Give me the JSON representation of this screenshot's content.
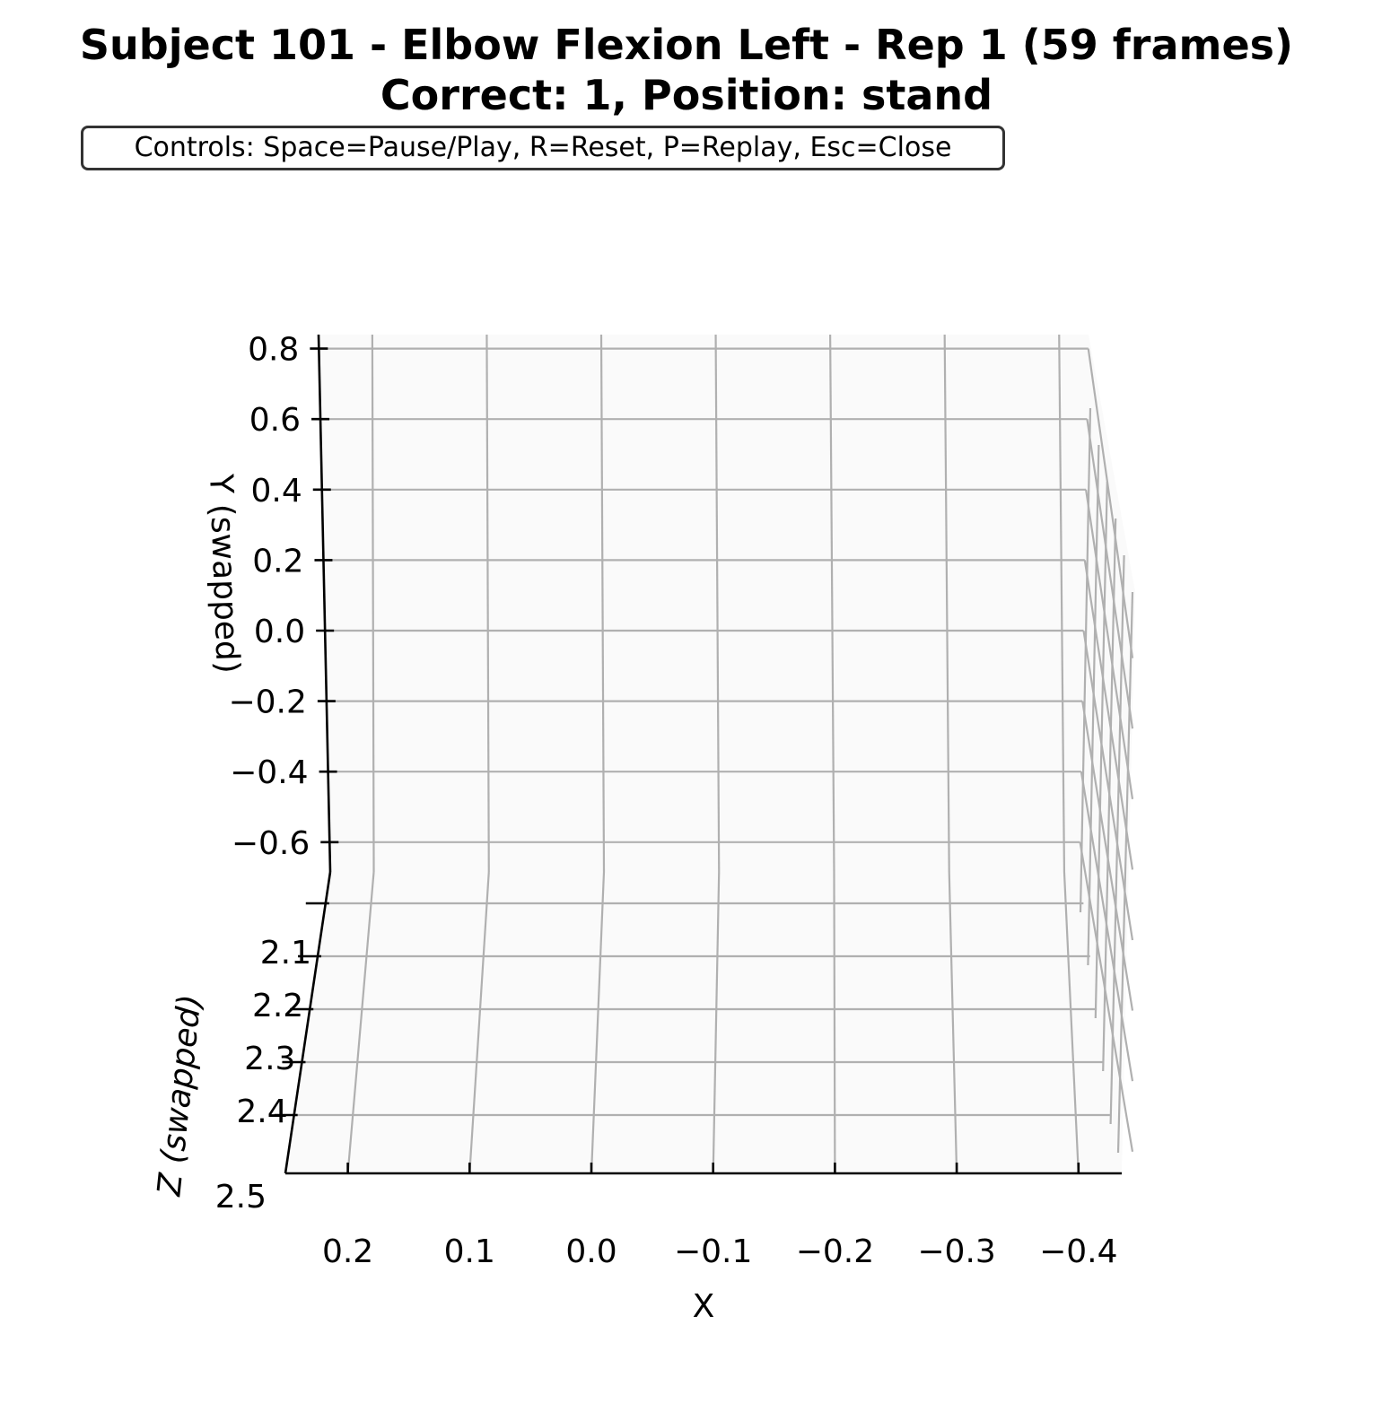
{
  "title": {
    "line1": "Subject 101 - Elbow Flexion Left - Rep 1 (59 frames)",
    "line2": "Correct: 1, Position: stand"
  },
  "controls_text": "Controls: Space=Pause/Play, R=Reset, P=Replay, Esc=Close",
  "chart_data": {
    "type": "scatter",
    "projection": "3d",
    "series": [],
    "x_axis": {
      "label": "X",
      "ticks": [
        0.2,
        0.1,
        0.0,
        -0.1,
        -0.2,
        -0.3,
        -0.4
      ],
      "tick_labels": [
        "0.2",
        "0.1",
        "0.0",
        "−0.1",
        "−0.2",
        "−0.3",
        "−0.4"
      ],
      "inverted": true
    },
    "y_axis": {
      "label": "Y (swapped)",
      "ticks": [
        0.8,
        0.6,
        0.4,
        0.2,
        0.0,
        -0.2,
        -0.4,
        -0.6
      ],
      "tick_labels": [
        "0.8",
        "0.6",
        "0.4",
        "0.2",
        "0.0",
        "−0.2",
        "−0.4",
        "−0.6"
      ]
    },
    "z_axis": {
      "label": "Z (swapped)",
      "ticks": [
        2.0,
        2.1,
        2.2,
        2.3,
        2.4,
        2.5
      ],
      "tick_labels": [
        "",
        "2.1",
        "2.2",
        "2.3",
        "2.4",
        "2.5"
      ]
    },
    "grid": true,
    "colors": {
      "grid": "#b0b0b0",
      "axis": "#000000",
      "pane": "#f7f7f7"
    }
  }
}
